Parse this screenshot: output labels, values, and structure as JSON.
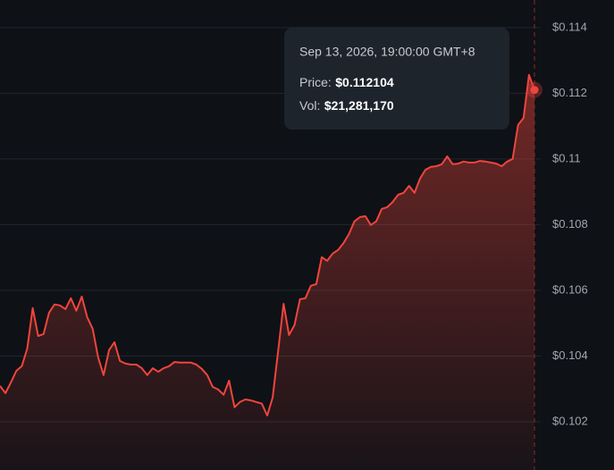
{
  "chart_data": {
    "type": "area",
    "values": [
      0.10309,
      0.10287,
      0.1032,
      0.10355,
      0.10369,
      0.10423,
      0.10546,
      0.10461,
      0.10467,
      0.10532,
      0.10557,
      0.10554,
      0.10543,
      0.10576,
      0.10538,
      0.10581,
      0.10518,
      0.10483,
      0.10396,
      0.10342,
      0.10418,
      0.10442,
      0.10385,
      0.10377,
      0.10374,
      0.10374,
      0.10363,
      0.10342,
      0.10363,
      0.10352,
      0.10363,
      0.10369,
      0.10382,
      0.1038,
      0.1038,
      0.1038,
      0.10374,
      0.10361,
      0.10342,
      0.10306,
      0.10298,
      0.10282,
      0.10325,
      0.10244,
      0.1026,
      0.10268,
      0.10265,
      0.1026,
      0.10255,
      0.10219,
      0.10274,
      0.10415,
      0.10559,
      0.10464,
      0.10494,
      0.10573,
      0.10576,
      0.10614,
      0.10619,
      0.10701,
      0.1069,
      0.10712,
      0.10723,
      0.10744,
      0.10772,
      0.1081,
      0.10823,
      0.10826,
      0.10799,
      0.1081,
      0.10848,
      0.10853,
      0.10869,
      0.10891,
      0.10897,
      0.10918,
      0.10897,
      0.1094,
      0.10967,
      0.10976,
      0.10978,
      0.10984,
      0.11008,
      0.10984,
      0.10986,
      0.10992,
      0.10989,
      0.10989,
      0.10994,
      0.10992,
      0.10989,
      0.10986,
      0.10978,
      0.10992,
      0.11,
      0.11104,
      0.11125,
      0.11256,
      0.112104
    ],
    "color": "#f0453c",
    "ylim": [
      0.10053,
      0.11484
    ],
    "yticks": [
      {
        "value": 0.102,
        "label": "$0.102"
      },
      {
        "value": 0.104,
        "label": "$0.104"
      },
      {
        "value": 0.106,
        "label": "$0.106"
      },
      {
        "value": 0.108,
        "label": "$0.108"
      },
      {
        "value": 0.11,
        "label": "$0.11"
      },
      {
        "value": 0.112,
        "label": "$0.112"
      },
      {
        "value": 0.114,
        "label": "$0.114"
      }
    ],
    "grid": true,
    "tooltip": {
      "date": "Sep 13, 2026, 19:00:00 GMT+8",
      "price_label": "Price:",
      "price": "$0.112104",
      "vol_label": "Vol:",
      "vol": "$21,281,170"
    }
  }
}
